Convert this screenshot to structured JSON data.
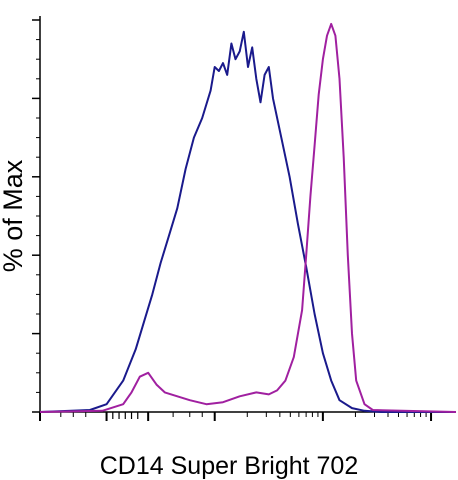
{
  "chart_data": {
    "type": "line",
    "title": "",
    "xlabel": "CD14 Super Bright 702",
    "ylabel": "% of Max",
    "x_scale": "log",
    "xlim": [
      0,
      1
    ],
    "ylim": [
      0,
      100
    ],
    "y_ticks": [
      0,
      20,
      40,
      60,
      80,
      100
    ],
    "grid": false,
    "legend": "none",
    "series": [
      {
        "color": "#1a1a8c",
        "x": [
          0.0,
          0.12,
          0.16,
          0.2,
          0.23,
          0.25,
          0.27,
          0.29,
          0.31,
          0.33,
          0.35,
          0.37,
          0.39,
          0.41,
          0.42,
          0.43,
          0.44,
          0.45,
          0.46,
          0.47,
          0.48,
          0.49,
          0.5,
          0.51,
          0.52,
          0.53,
          0.54,
          0.55,
          0.56,
          0.58,
          0.6,
          0.62,
          0.64,
          0.66,
          0.68,
          0.7,
          0.72,
          0.75,
          0.78,
          0.82,
          1.0
        ],
        "y": [
          0,
          0.5,
          2,
          8,
          16,
          23,
          30,
          38,
          45,
          52,
          62,
          70,
          75,
          82,
          88,
          87,
          89,
          86,
          94,
          90,
          92,
          97,
          88,
          93,
          85,
          79,
          86,
          88,
          80,
          70,
          60,
          48,
          37,
          25,
          15,
          8,
          3,
          1,
          0.3,
          0,
          0
        ]
      },
      {
        "color": "#a020a0",
        "x": [
          0.0,
          0.15,
          0.2,
          0.22,
          0.24,
          0.26,
          0.28,
          0.3,
          0.33,
          0.36,
          0.4,
          0.44,
          0.48,
          0.52,
          0.55,
          0.57,
          0.59,
          0.61,
          0.63,
          0.64,
          0.65,
          0.66,
          0.67,
          0.68,
          0.69,
          0.7,
          0.71,
          0.72,
          0.73,
          0.74,
          0.75,
          0.76,
          0.78,
          0.8,
          1.0
        ],
        "y": [
          0,
          0.3,
          2,
          5,
          9,
          10,
          7,
          5,
          4,
          3,
          2,
          2.5,
          4,
          5,
          4.5,
          5.5,
          8,
          14,
          26,
          40,
          55,
          68,
          81,
          90,
          96,
          99,
          96,
          85,
          65,
          40,
          20,
          8,
          2,
          0.5,
          0
        ]
      }
    ]
  }
}
